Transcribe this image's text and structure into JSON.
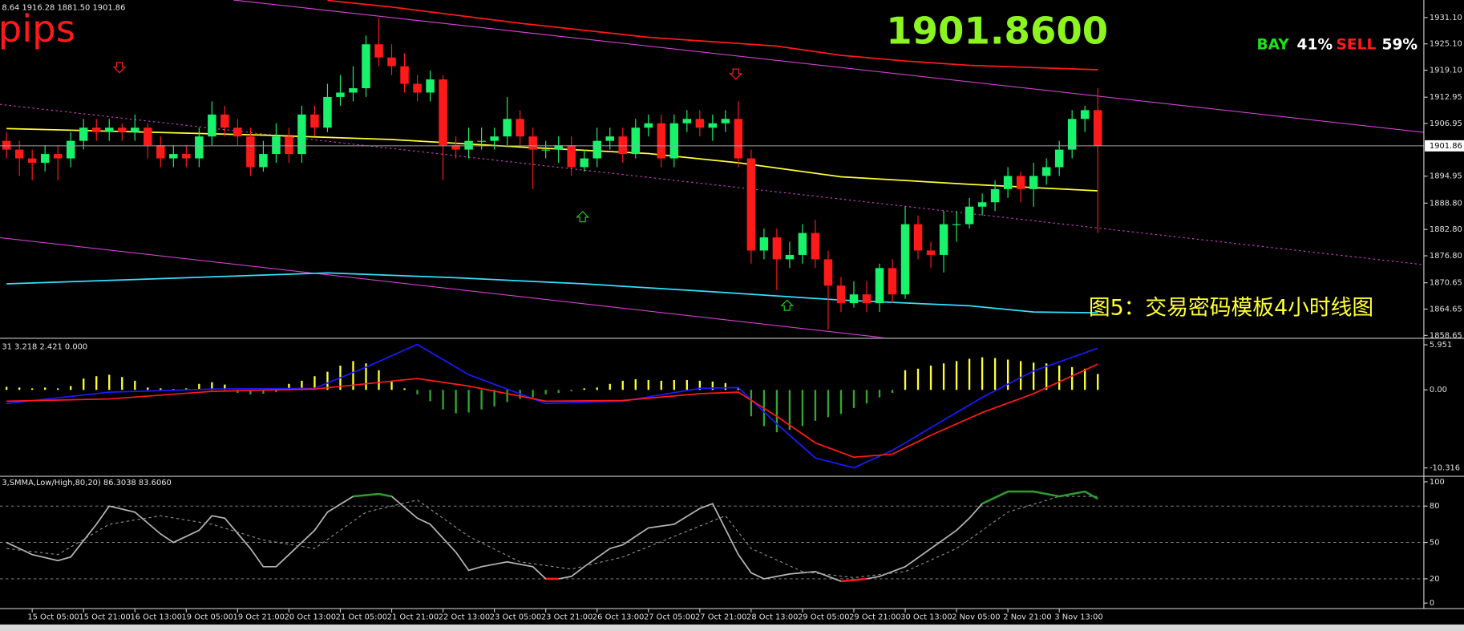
{
  "header": {
    "ohlc_text": "8.64 1916.28 1881.50 1901.86",
    "pips": "pips",
    "price": "1901.8600",
    "bay_label": "BAY",
    "bay_pct": "41%",
    "sell_label": "SELL",
    "sell_pct": "59%"
  },
  "chart_data": [
    {
      "type": "candlestick",
      "annotation": "图5：交易密码模板4小时线图",
      "up_color": "#19f26b",
      "down_color": "#ff1a1a",
      "ylim": [
        1858.2,
        1935.1
      ],
      "yticks": [
        {
          "value": 1931.1,
          "label": "1931.10"
        },
        {
          "value": 1925.1,
          "label": "1925.10"
        },
        {
          "value": 1919.1,
          "label": "1919.10"
        },
        1912.95,
        1906.95,
        1894.95,
        {
          "value": 1888.8,
          "label": "1888.80"
        },
        {
          "value": 1882.8,
          "label": "1882.80"
        },
        {
          "value": 1876.8,
          "label": "1876.80"
        },
        1870.65,
        1864.65,
        1858.65
      ],
      "last_price": {
        "value": 1901.86,
        "label": "1901.86"
      },
      "categories": [
        null,
        null,
        "15 Oct 05:00",
        null,
        null,
        null,
        "15 Oct 21:00",
        null,
        null,
        null,
        "16 Oct 13:00",
        null,
        null,
        null,
        "19 Oct 05:00",
        null,
        null,
        null,
        "19 Oct 21:00",
        null,
        null,
        null,
        "20 Oct 13:00",
        null,
        null,
        null,
        "21 Oct 05:00",
        null,
        null,
        null,
        "21 Oct 21:00",
        null,
        null,
        null,
        "22 Oct 13:00",
        null,
        null,
        null,
        "23 Oct 05:00",
        null,
        null,
        null,
        "23 Oct 21:00",
        null,
        null,
        null,
        "26 Oct 13:00",
        null,
        null,
        null,
        "27 Oct 05:00",
        null,
        null,
        null,
        "27 Oct 21:00",
        null,
        null,
        null,
        "28 Oct 13:00",
        null,
        null,
        null,
        "29 Oct 05:00",
        null,
        null,
        null,
        "29 Oct 21:00",
        null,
        null,
        null,
        "30 Oct 13:00",
        null,
        null,
        null,
        "2 Nov 05:00",
        null,
        null,
        null,
        "2 Nov 21:00",
        null,
        null,
        null,
        "3 Nov 13:00",
        null,
        null,
        null
      ],
      "open": [
        1903,
        1901,
        1899,
        1898,
        1900,
        1899,
        1903,
        1906,
        1905,
        1906,
        1905,
        1906,
        1902,
        1899,
        1900,
        1899,
        1904,
        1909,
        1906,
        1904,
        1897,
        1900,
        1904,
        1900,
        1909,
        1906,
        1913,
        1914,
        1915,
        1925,
        1922,
        1920,
        1916,
        1914,
        1917,
        1902,
        1901,
        1903,
        1903,
        1904,
        1908,
        1904,
        1901,
        1901,
        1902,
        1897,
        1899,
        1903,
        1904,
        1900,
        1906,
        1907,
        1899,
        1907,
        1908,
        1906,
        1907,
        1908,
        1899,
        1878,
        1881,
        1876,
        1877,
        1882,
        1876,
        1870,
        1866,
        1868,
        1866,
        1874,
        1868,
        1884,
        1878,
        1877,
        1884,
        1884,
        1888,
        1889,
        1892,
        1895,
        1892,
        1895,
        1897,
        1901,
        1908,
        1910
      ],
      "high": [
        1905,
        1903,
        1901,
        1902,
        1902,
        1905,
        1908,
        1908,
        1908,
        1907,
        1909,
        1907,
        1904,
        1902,
        1902,
        1906,
        1912,
        1911,
        1908,
        1906,
        1903,
        1907,
        1906,
        1911,
        1911,
        1916,
        1918,
        1920,
        1927,
        1931,
        1925,
        1923,
        1918,
        1919,
        1918,
        1904,
        1906,
        1906,
        1906,
        1913,
        1910,
        1906,
        1903,
        1904,
        1904,
        1901,
        1906,
        1906,
        1906,
        1908,
        1909,
        1909,
        1909,
        1910,
        1910,
        1909,
        1910,
        1912,
        1901,
        1883,
        1883,
        1880,
        1884,
        1885,
        1878,
        1872,
        1871,
        1871,
        1875,
        1876,
        1888,
        1886,
        1880,
        1887,
        1887,
        1890,
        1891,
        1894,
        1897,
        1896,
        1898,
        1899,
        1903,
        1910,
        1911,
        1915
      ],
      "low": [
        1899,
        1895,
        1894,
        1896,
        1894,
        1897,
        1901,
        1903,
        1903,
        1903,
        1903,
        1899,
        1897,
        1897,
        1897,
        1897,
        1902,
        1904,
        1902,
        1895,
        1896,
        1898,
        1898,
        1898,
        1904,
        1905,
        1911,
        1912,
        1913,
        1920,
        1918,
        1914,
        1912,
        1912,
        1894,
        1899,
        1899,
        1901,
        1901,
        1902,
        1902,
        1892,
        1899,
        1898,
        1895,
        1896,
        1897,
        1901,
        1898,
        1899,
        1904,
        1897,
        1897,
        1905,
        1904,
        1903,
        1905,
        1897,
        1875,
        1876,
        1869,
        1874,
        1875,
        1874,
        1860,
        1864,
        1865,
        1864,
        1864,
        1866,
        1867,
        1876,
        1874,
        1873,
        1880,
        1883,
        1886,
        1887,
        1890,
        1889,
        1888,
        1893,
        1895,
        1899,
        1905,
        1882
      ],
      "close": [
        1901,
        1899,
        1898,
        1900,
        1899,
        1903,
        1906,
        1905,
        1906,
        1905,
        1906,
        1902,
        1899,
        1900,
        1899,
        1904,
        1909,
        1906,
        1904,
        1897,
        1900,
        1904,
        1900,
        1909,
        1906,
        1913,
        1914,
        1915,
        1925,
        1922,
        1920,
        1916,
        1914,
        1917,
        1902,
        1901,
        1903,
        1903,
        1904,
        1908,
        1904,
        1901,
        1901,
        1902,
        1897,
        1899,
        1903,
        1904,
        1900,
        1906,
        1907,
        1899,
        1907,
        1908,
        1906,
        1907,
        1908,
        1899,
        1878,
        1881,
        1876,
        1877,
        1882,
        1876,
        1870,
        1866,
        1868,
        1866,
        1874,
        1868,
        1884,
        1878,
        1877,
        1884,
        1884,
        1888,
        1889,
        1892,
        1895,
        1892,
        1895,
        1897,
        1901,
        1908,
        1910,
        1901.86
      ],
      "series": [
        {
          "color": "#ff1a1a",
          "x": [
            25,
            30,
            40,
            50,
            60,
            65,
            70,
            75,
            85
          ],
          "values": [
            1935.0,
            1933.5,
            1929.8,
            1926.6,
            1924.6,
            1922.5,
            1921.2,
            1920.2,
            1919.2
          ]
        },
        {
          "color": "#ffff33",
          "x": [
            0,
            20,
            30,
            40,
            50,
            57,
            65,
            75,
            85
          ],
          "values": [
            1905.8,
            1904.3,
            1903.3,
            1901.6,
            1900.1,
            1898.0,
            1894.8,
            1893.1,
            1891.6
          ]
        },
        {
          "color": "#33e0ff",
          "x": [
            0,
            10,
            25,
            35,
            45,
            55,
            65,
            75,
            80,
            85
          ],
          "values": [
            1870.4,
            1871.4,
            1872.9,
            1871.8,
            1870.4,
            1868.6,
            1866.7,
            1865.4,
            1864.0,
            1863.8
          ]
        }
      ]
    },
    {
      "type": "macd",
      "header": "31 3.218 2.421 0.000",
      "ylim": [
        -11.3,
        6.44
      ],
      "yticks": [
        5.951,
        {
          "value": 0,
          "label": "0.00"
        },
        -10.316
      ],
      "pos_color": "#ffff33",
      "neg_color": "#2fa82f",
      "values": [
        0.4,
        0.3,
        0.2,
        0.3,
        0.2,
        0.5,
        1.5,
        1.8,
        2.0,
        1.7,
        1.2,
        0.3,
        0.2,
        0.1,
        0.2,
        0.8,
        1.0,
        0.7,
        -0.4,
        -0.6,
        -0.5,
        -0.3,
        0.8,
        1.2,
        1.8,
        2.4,
        3.2,
        3.8,
        3.5,
        2.6,
        1.2,
        0.2,
        -0.6,
        -1.5,
        -2.6,
        -3.1,
        -3.0,
        -2.6,
        -2.2,
        -1.6,
        -1.2,
        -1.0,
        -0.6,
        -0.4,
        -0.2,
        0.2,
        0.3,
        0.8,
        1.2,
        1.4,
        1.3,
        1.2,
        1.3,
        1.3,
        1.2,
        1.1,
        0.9,
        0.2,
        -3.5,
        -4.8,
        -5.6,
        -5.3,
        -4.8,
        -4.1,
        -3.6,
        -3.2,
        -2.4,
        -1.8,
        -1.0,
        -0.4,
        2.6,
        2.8,
        3.2,
        3.5,
        3.8,
        4.1,
        4.3,
        4.2,
        4.0,
        3.8,
        3.6,
        3.5,
        3.2,
        3.0,
        2.8,
        2.1
      ],
      "series": [
        {
          "color": "#1a1aff",
          "x": [
            0,
            8,
            16,
            24,
            28,
            32,
            36,
            42,
            48,
            54,
            57,
            60,
            63,
            66,
            69,
            72,
            76,
            80,
            85
          ],
          "values": [
            -1.8,
            -0.3,
            0.1,
            0.2,
            3,
            6,
            2,
            -1.8,
            -1.5,
            0.2,
            0.3,
            -4.5,
            -9.0,
            -10.3,
            -8.0,
            -5.0,
            -1.0,
            2.5,
            5.5
          ]
        },
        {
          "color": "#ff1a1a",
          "x": [
            0,
            8,
            16,
            24,
            28,
            32,
            36,
            42,
            48,
            54,
            57,
            60,
            63,
            66,
            69,
            72,
            76,
            80,
            85
          ],
          "values": [
            -1.5,
            -1.2,
            -0.2,
            0.1,
            0.8,
            1.5,
            0.5,
            -1.5,
            -1.4,
            -0.5,
            -0.3,
            -3.5,
            -7.0,
            -8.9,
            -8.5,
            -6.0,
            -3.0,
            -0.5,
            3.4
          ]
        }
      ]
    },
    {
      "type": "stochastic",
      "header": "3,SMMA,Low/High,80,20) 86.3038 83.6060",
      "ylim": [
        -3.8,
        103.8
      ],
      "yticks": [
        100,
        80,
        50,
        20,
        0
      ],
      "levels": [
        80,
        50,
        20
      ],
      "high_color": "#2e9a2e",
      "low_color": "#ff1a1a",
      "series": [
        {
          "color": "#b4b4b4",
          "x": [
            0,
            2,
            4,
            5,
            7,
            8,
            10,
            12,
            13,
            15,
            16,
            17,
            19,
            20,
            21,
            22,
            24,
            25,
            27,
            29,
            30,
            32,
            33,
            35,
            36,
            37,
            39,
            41,
            42,
            43,
            44,
            45,
            47,
            48,
            49,
            50,
            52,
            54,
            55,
            57,
            58,
            59,
            60,
            61,
            63,
            64,
            65,
            67,
            68,
            70,
            72,
            74,
            75,
            76,
            78,
            80,
            82,
            84,
            85
          ],
          "values": [
            50,
            40,
            35,
            38,
            65,
            80,
            75,
            57,
            50,
            60,
            72,
            70,
            45,
            30,
            30,
            40,
            60,
            75,
            88,
            90,
            88,
            70,
            65,
            42,
            27,
            30,
            34,
            30,
            20,
            20,
            22,
            30,
            45,
            48,
            55,
            62,
            65,
            78,
            82,
            40,
            25,
            20,
            22,
            24,
            26,
            22,
            18,
            20,
            22,
            30,
            45,
            60,
            70,
            82,
            92,
            92,
            88,
            92,
            86
          ]
        },
        {
          "color": "#8c8c8c",
          "dashed": true,
          "x": [
            0,
            4,
            8,
            12,
            16,
            20,
            24,
            28,
            32,
            36,
            40,
            44,
            48,
            52,
            56,
            58,
            62,
            66,
            70,
            74,
            78,
            82,
            85
          ],
          "values": [
            45,
            40,
            65,
            72,
            65,
            52,
            45,
            75,
            85,
            55,
            34,
            28,
            38,
            55,
            72,
            45,
            26,
            21,
            26,
            45,
            75,
            88,
            88
          ]
        }
      ]
    }
  ]
}
